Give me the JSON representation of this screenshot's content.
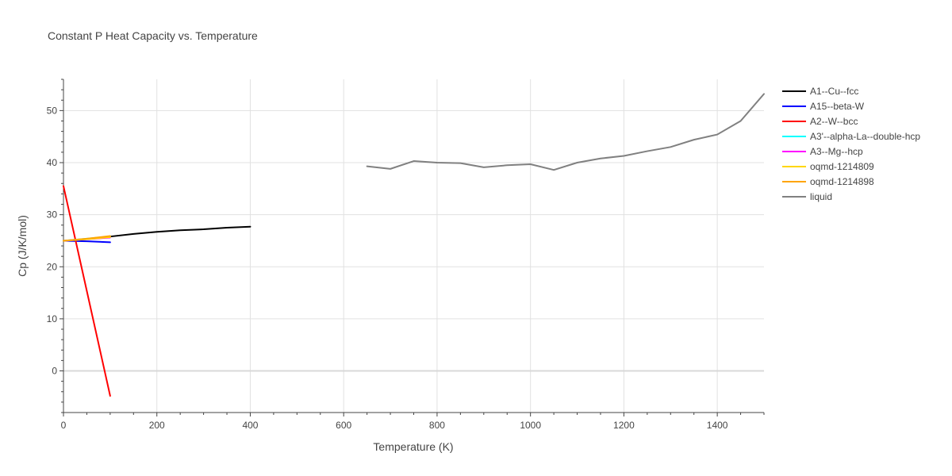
{
  "chart_data": {
    "type": "line",
    "title": "Constant P Heat Capacity vs. Temperature",
    "xlabel": "Temperature (K)",
    "ylabel": "Cp (J/K/mol)",
    "xlim": [
      0,
      1500
    ],
    "ylim": [
      -8,
      56
    ],
    "x_ticks": [
      0,
      200,
      400,
      600,
      800,
      1000,
      1200,
      1400
    ],
    "y_ticks": [
      0,
      10,
      20,
      30,
      40,
      50
    ],
    "grid": true,
    "legend_position": "top-right",
    "series": [
      {
        "name": "A1--Cu--fcc",
        "color": "#000000",
        "x": [
          100,
          150,
          200,
          250,
          300,
          350,
          400
        ],
        "y": [
          25.8,
          26.3,
          26.7,
          27.0,
          27.2,
          27.5,
          27.7
        ]
      },
      {
        "name": "A15--beta-W",
        "color": "#0000ff",
        "x": [
          0,
          50,
          100
        ],
        "y": [
          25.0,
          24.9,
          24.7
        ]
      },
      {
        "name": "A2--W--bcc",
        "color": "#ff0000",
        "x": [
          0,
          100
        ],
        "y": [
          35.5,
          -4.8
        ]
      },
      {
        "name": "A3'--alpha-La--double-hcp",
        "color": "#00ffff",
        "x": [
          0,
          50,
          100
        ],
        "y": [
          25.0,
          25.4,
          25.8
        ]
      },
      {
        "name": "A3--Mg--hcp",
        "color": "#ff00ff",
        "x": [
          0,
          50,
          100
        ],
        "y": [
          25.0,
          25.3,
          25.6
        ]
      },
      {
        "name": "oqmd-1214809",
        "color": "#ffd700",
        "x": [
          0,
          50,
          100
        ],
        "y": [
          25.0,
          25.3,
          25.7
        ]
      },
      {
        "name": "oqmd-1214898",
        "color": "#ffa500",
        "x": [
          0,
          50,
          100
        ],
        "y": [
          25.0,
          25.4,
          25.9
        ]
      },
      {
        "name": "liquid",
        "color": "#808080",
        "x": [
          650,
          700,
          750,
          800,
          850,
          900,
          950,
          1000,
          1050,
          1100,
          1150,
          1200,
          1250,
          1300,
          1350,
          1400,
          1450,
          1500
        ],
        "y": [
          39.3,
          38.8,
          40.3,
          40.0,
          39.9,
          39.1,
          39.5,
          39.7,
          38.6,
          40.0,
          40.8,
          41.3,
          42.2,
          43.0,
          44.4,
          45.4,
          48.0,
          53.2
        ]
      }
    ]
  }
}
